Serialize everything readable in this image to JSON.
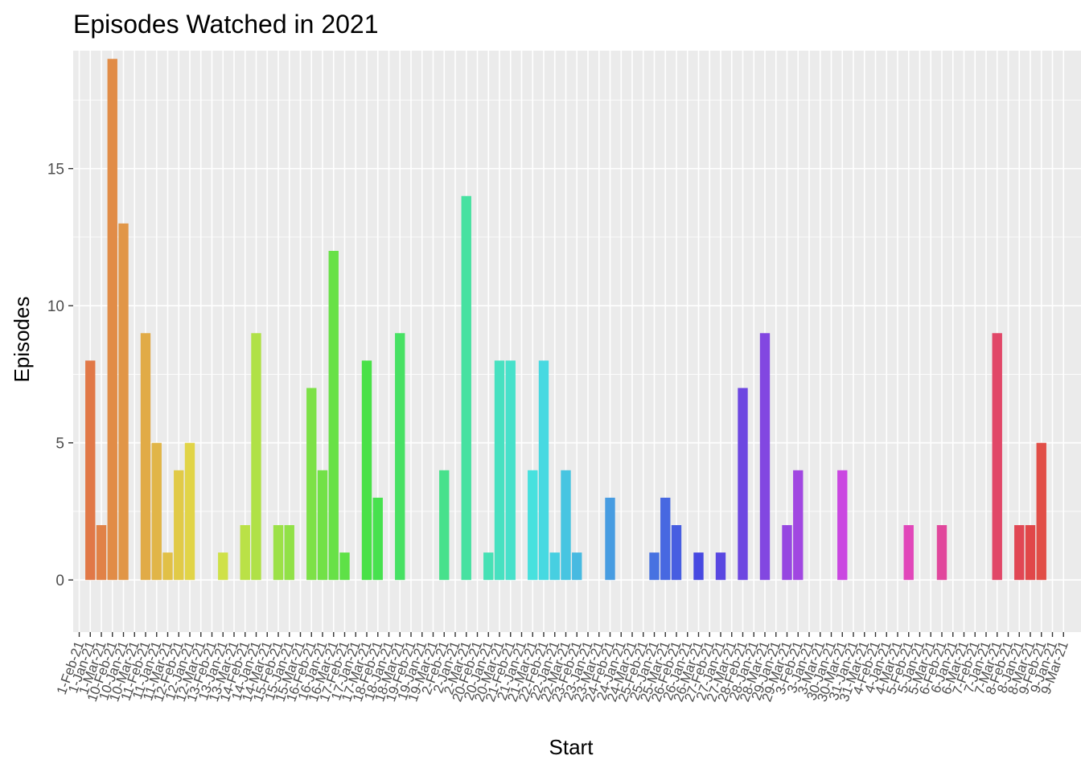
{
  "chart_data": {
    "type": "bar",
    "title": "Episodes Watched in 2021",
    "xlabel": "Start",
    "ylabel": "Episodes",
    "ylim": [
      -1.9,
      19.3
    ],
    "yticks": [
      0,
      5,
      10,
      15
    ],
    "grid": true,
    "legend": "none",
    "categories": [
      "1-Feb-21",
      "1-Jan-21",
      "1-Mar-21",
      "10-Feb-21",
      "10-Jan-21",
      "10-Mar-21",
      "11-Feb-21",
      "11-Jan-21",
      "11-Mar-21",
      "12-Feb-21",
      "12-Jan-21",
      "12-Mar-21",
      "13-Feb-21",
      "13-Jan-21",
      "13-Mar-21",
      "14-Feb-21",
      "14-Jan-21",
      "14-Mar-21",
      "15-Feb-21",
      "15-Jan-21",
      "15-Mar-21",
      "16-Feb-21",
      "16-Jan-21",
      "16-Mar-21",
      "17-Feb-21",
      "17-Jan-21",
      "17-Mar-21",
      "18-Feb-21",
      "18-Jan-21",
      "18-Mar-21",
      "19-Feb-21",
      "19-Jan-21",
      "19-Mar-21",
      "2-Feb-21",
      "2-Jan-21",
      "2-Mar-21",
      "20-Feb-21",
      "20-Jan-21",
      "20-Mar-21",
      "21-Feb-21",
      "21-Jan-21",
      "21-Mar-21",
      "22-Feb-21",
      "22-Jan-21",
      "22-Mar-21",
      "23-Feb-21",
      "23-Jan-21",
      "23-Mar-21",
      "24-Feb-21",
      "24-Jan-21",
      "24-Mar-21",
      "25-Feb-21",
      "25-Jan-21",
      "25-Mar-21",
      "26-Feb-21",
      "26-Jan-21",
      "26-Mar-21",
      "27-Feb-21",
      "27-Jan-21",
      "27-Mar-21",
      "28-Feb-21",
      "28-Jan-21",
      "28-Mar-21",
      "29-Jan-21",
      "29-Mar-21",
      "3-Feb-21",
      "3-Jan-21",
      "3-Mar-21",
      "30-Jan-21",
      "30-Mar-21",
      "31-Jan-21",
      "31-Mar-21",
      "4-Feb-21",
      "4-Jan-21",
      "4-Mar-21",
      "5-Feb-21",
      "5-Jan-21",
      "5-Mar-21",
      "6-Feb-21",
      "6-Jan-21",
      "6-Mar-21",
      "7-Feb-21",
      "7-Jan-21",
      "7-Mar-21",
      "8-Feb-21",
      "8-Jan-21",
      "8-Mar-21",
      "9-Feb-21",
      "9-Jan-21",
      "9-Mar-21"
    ],
    "values": [
      0,
      8,
      2,
      19,
      13,
      0,
      9,
      5,
      1,
      4,
      5,
      0,
      0,
      1,
      0,
      2,
      9,
      0,
      2,
      2,
      0,
      7,
      4,
      12,
      1,
      0,
      8,
      3,
      0,
      9,
      0,
      0,
      0,
      4,
      0,
      14,
      0,
      1,
      8,
      8,
      0,
      4,
      8,
      1,
      4,
      1,
      0,
      0,
      3,
      0,
      0,
      0,
      1,
      3,
      2,
      0,
      1,
      0,
      1,
      0,
      7,
      0,
      9,
      0,
      2,
      4,
      0,
      0,
      0,
      4,
      0,
      0,
      0,
      0,
      0,
      2,
      0,
      0,
      2,
      0,
      0,
      0,
      0,
      9,
      0,
      2,
      2,
      5,
      0,
      0
    ]
  }
}
